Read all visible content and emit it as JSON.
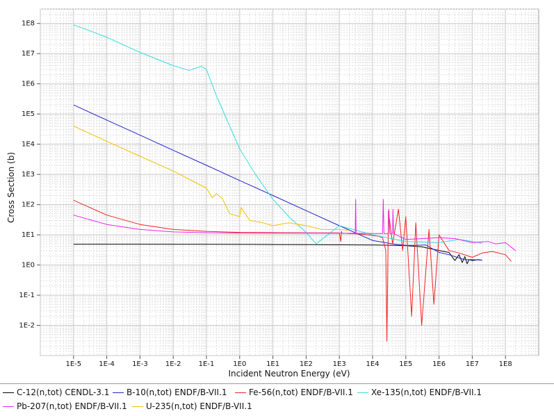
{
  "chart_data": {
    "type": "line",
    "title": "",
    "xlabel": "Incident Neutron Energy (eV)",
    "ylabel": "Cross Section (b)",
    "xscale": "log",
    "yscale": "log",
    "xlim": [
      1e-06,
      1000000000.0
    ],
    "ylim": [
      0.001,
      300000000.0
    ],
    "grid": true,
    "legend_position": "bottom",
    "x_ticks": [
      {
        "value": 1e-05,
        "label": "1E-5"
      },
      {
        "value": 0.0001,
        "label": "1E-4"
      },
      {
        "value": 0.001,
        "label": "1E-3"
      },
      {
        "value": 0.01,
        "label": "1E-2"
      },
      {
        "value": 0.1,
        "label": "1E-1"
      },
      {
        "value": 1,
        "label": "1E0"
      },
      {
        "value": 10,
        "label": "1E1"
      },
      {
        "value": 100,
        "label": "1E2"
      },
      {
        "value": 1000,
        "label": "1E3"
      },
      {
        "value": 10000,
        "label": "1E4"
      },
      {
        "value": 100000,
        "label": "1E5"
      },
      {
        "value": 1000000,
        "label": "1E6"
      },
      {
        "value": 10000000,
        "label": "1E7"
      },
      {
        "value": 100000000,
        "label": "1E8"
      }
    ],
    "y_ticks": [
      {
        "value": 0.01,
        "label": "1E-2"
      },
      {
        "value": 0.1,
        "label": "1E-1"
      },
      {
        "value": 1,
        "label": "1E0"
      },
      {
        "value": 10,
        "label": "1E1"
      },
      {
        "value": 100,
        "label": "1E2"
      },
      {
        "value": 1000,
        "label": "1E3"
      },
      {
        "value": 10000,
        "label": "1E4"
      },
      {
        "value": 100000,
        "label": "1E5"
      },
      {
        "value": 1000000,
        "label": "1E6"
      },
      {
        "value": 10000000,
        "label": "1E7"
      },
      {
        "value": 100000000,
        "label": "1E8"
      }
    ],
    "series": [
      {
        "name": "C-12(n,tot) CENDL-3.1",
        "color": "#000000",
        "x": [
          1e-05,
          0.001,
          0.1,
          1,
          10,
          100,
          1000,
          10000,
          50000,
          100000,
          300000,
          1000000,
          2000000,
          3000000,
          4000000,
          5000000,
          6000000,
          7000000,
          8000000,
          10000000.0,
          15000000.0,
          20000000.0
        ],
        "y": [
          4.9,
          4.9,
          4.85,
          4.8,
          4.75,
          4.7,
          4.65,
          4.6,
          4.5,
          4.4,
          4.0,
          3.0,
          2.6,
          1.4,
          2.2,
          1.2,
          1.9,
          1.1,
          1.5,
          1.4,
          1.5,
          1.45
        ]
      },
      {
        "name": "B-10(n,tot) ENDF/B-VII.1",
        "color": "#2222cc",
        "x": [
          1e-05,
          0.0001,
          0.001,
          0.01,
          0.1,
          1,
          10,
          100,
          1000,
          10000,
          50000,
          100000,
          200000,
          400000,
          1000000,
          2000000,
          4000000,
          6000000,
          10000000.0,
          20000000.0
        ],
        "y": [
          200000,
          63000,
          20000,
          6300,
          2000,
          630,
          200,
          63,
          20,
          6.5,
          4.8,
          4.5,
          4.5,
          4.6,
          2.6,
          2.2,
          1.7,
          1.5,
          1.5,
          1.45
        ]
      },
      {
        "name": "Fe-56(n,tot) ENDF/B-VII.1",
        "color": "#ee2222",
        "x": [
          1e-05,
          0.0001,
          0.001,
          0.01,
          0.1,
          1,
          10,
          100,
          1000,
          1100,
          1150,
          1200,
          5000,
          15000,
          20000,
          25000,
          27000,
          30000,
          40000,
          60000,
          80000,
          100000,
          150000,
          200000,
          300000,
          500000,
          700000,
          1000000,
          2000000,
          4000000,
          10000000.0,
          20000000.0,
          40000000.0,
          100000000.0,
          150000000.0
        ],
        "y": [
          140,
          45,
          22,
          15,
          13,
          12,
          11.8,
          11.6,
          11.5,
          6.0,
          13.0,
          11.3,
          10.5,
          9.0,
          8.0,
          3.0,
          0.003,
          60,
          5.0,
          70,
          3.0,
          40,
          0.02,
          25,
          0.01,
          15,
          0.05,
          10,
          3.0,
          2.5,
          1.8,
          2.5,
          2.8,
          2.2,
          1.3
        ]
      },
      {
        "name": "Xe-135(n,tot) ENDF/B-VII.1",
        "color": "#33dddd",
        "x": [
          1e-05,
          0.0001,
          0.001,
          0.01,
          0.03,
          0.07,
          0.1,
          0.2,
          0.5,
          1,
          3,
          10,
          30,
          100,
          200,
          1000,
          10000,
          100000,
          1000000,
          4000000,
          10000000.0,
          20000000.0
        ],
        "y": [
          90000000,
          35000000,
          11000000,
          4000000,
          2800000,
          3800000,
          3000000,
          400000,
          40000,
          7000,
          1000,
          150,
          40,
          12,
          5,
          20,
          10,
          6,
          5.5,
          7,
          6,
          5.2
        ]
      },
      {
        "name": "Pb-207(n,tot) ENDF/B-VII.1",
        "color": "#ee22ee",
        "x": [
          1e-05,
          0.0001,
          0.001,
          0.01,
          0.1,
          1,
          10,
          100,
          1000,
          3000,
          3100,
          3200,
          10000,
          20000,
          21000,
          22000,
          30000,
          31000,
          33000,
          40000,
          41000,
          43000,
          100000,
          1000000,
          3000000,
          10000000.0,
          30000000.0,
          50000000.0,
          100000000.0,
          200000000.0
        ],
        "y": [
          45,
          22,
          15,
          12.5,
          11.7,
          11.4,
          11.3,
          11.3,
          11.2,
          11.2,
          150,
          11.2,
          11.0,
          11.0,
          150,
          11.0,
          11.0,
          70,
          11.0,
          11.0,
          70,
          11.0,
          7,
          8,
          7.5,
          5.5,
          6,
          5.0,
          5.5,
          3.0
        ]
      },
      {
        "name": "U-235(n,tot) ENDF/B-VII.1",
        "color": "#f2c200",
        "x": [
          1e-05,
          0.0001,
          0.001,
          0.01,
          0.1,
          0.15,
          0.2,
          0.3,
          0.5,
          1,
          1.1,
          2,
          5,
          10,
          30,
          100,
          300,
          1000,
          2000
        ],
        "y": [
          40000,
          12500,
          4000,
          1300,
          350,
          170,
          230,
          160,
          50,
          40,
          80,
          30,
          25,
          20,
          25,
          20,
          15,
          15,
          14
        ]
      }
    ]
  }
}
